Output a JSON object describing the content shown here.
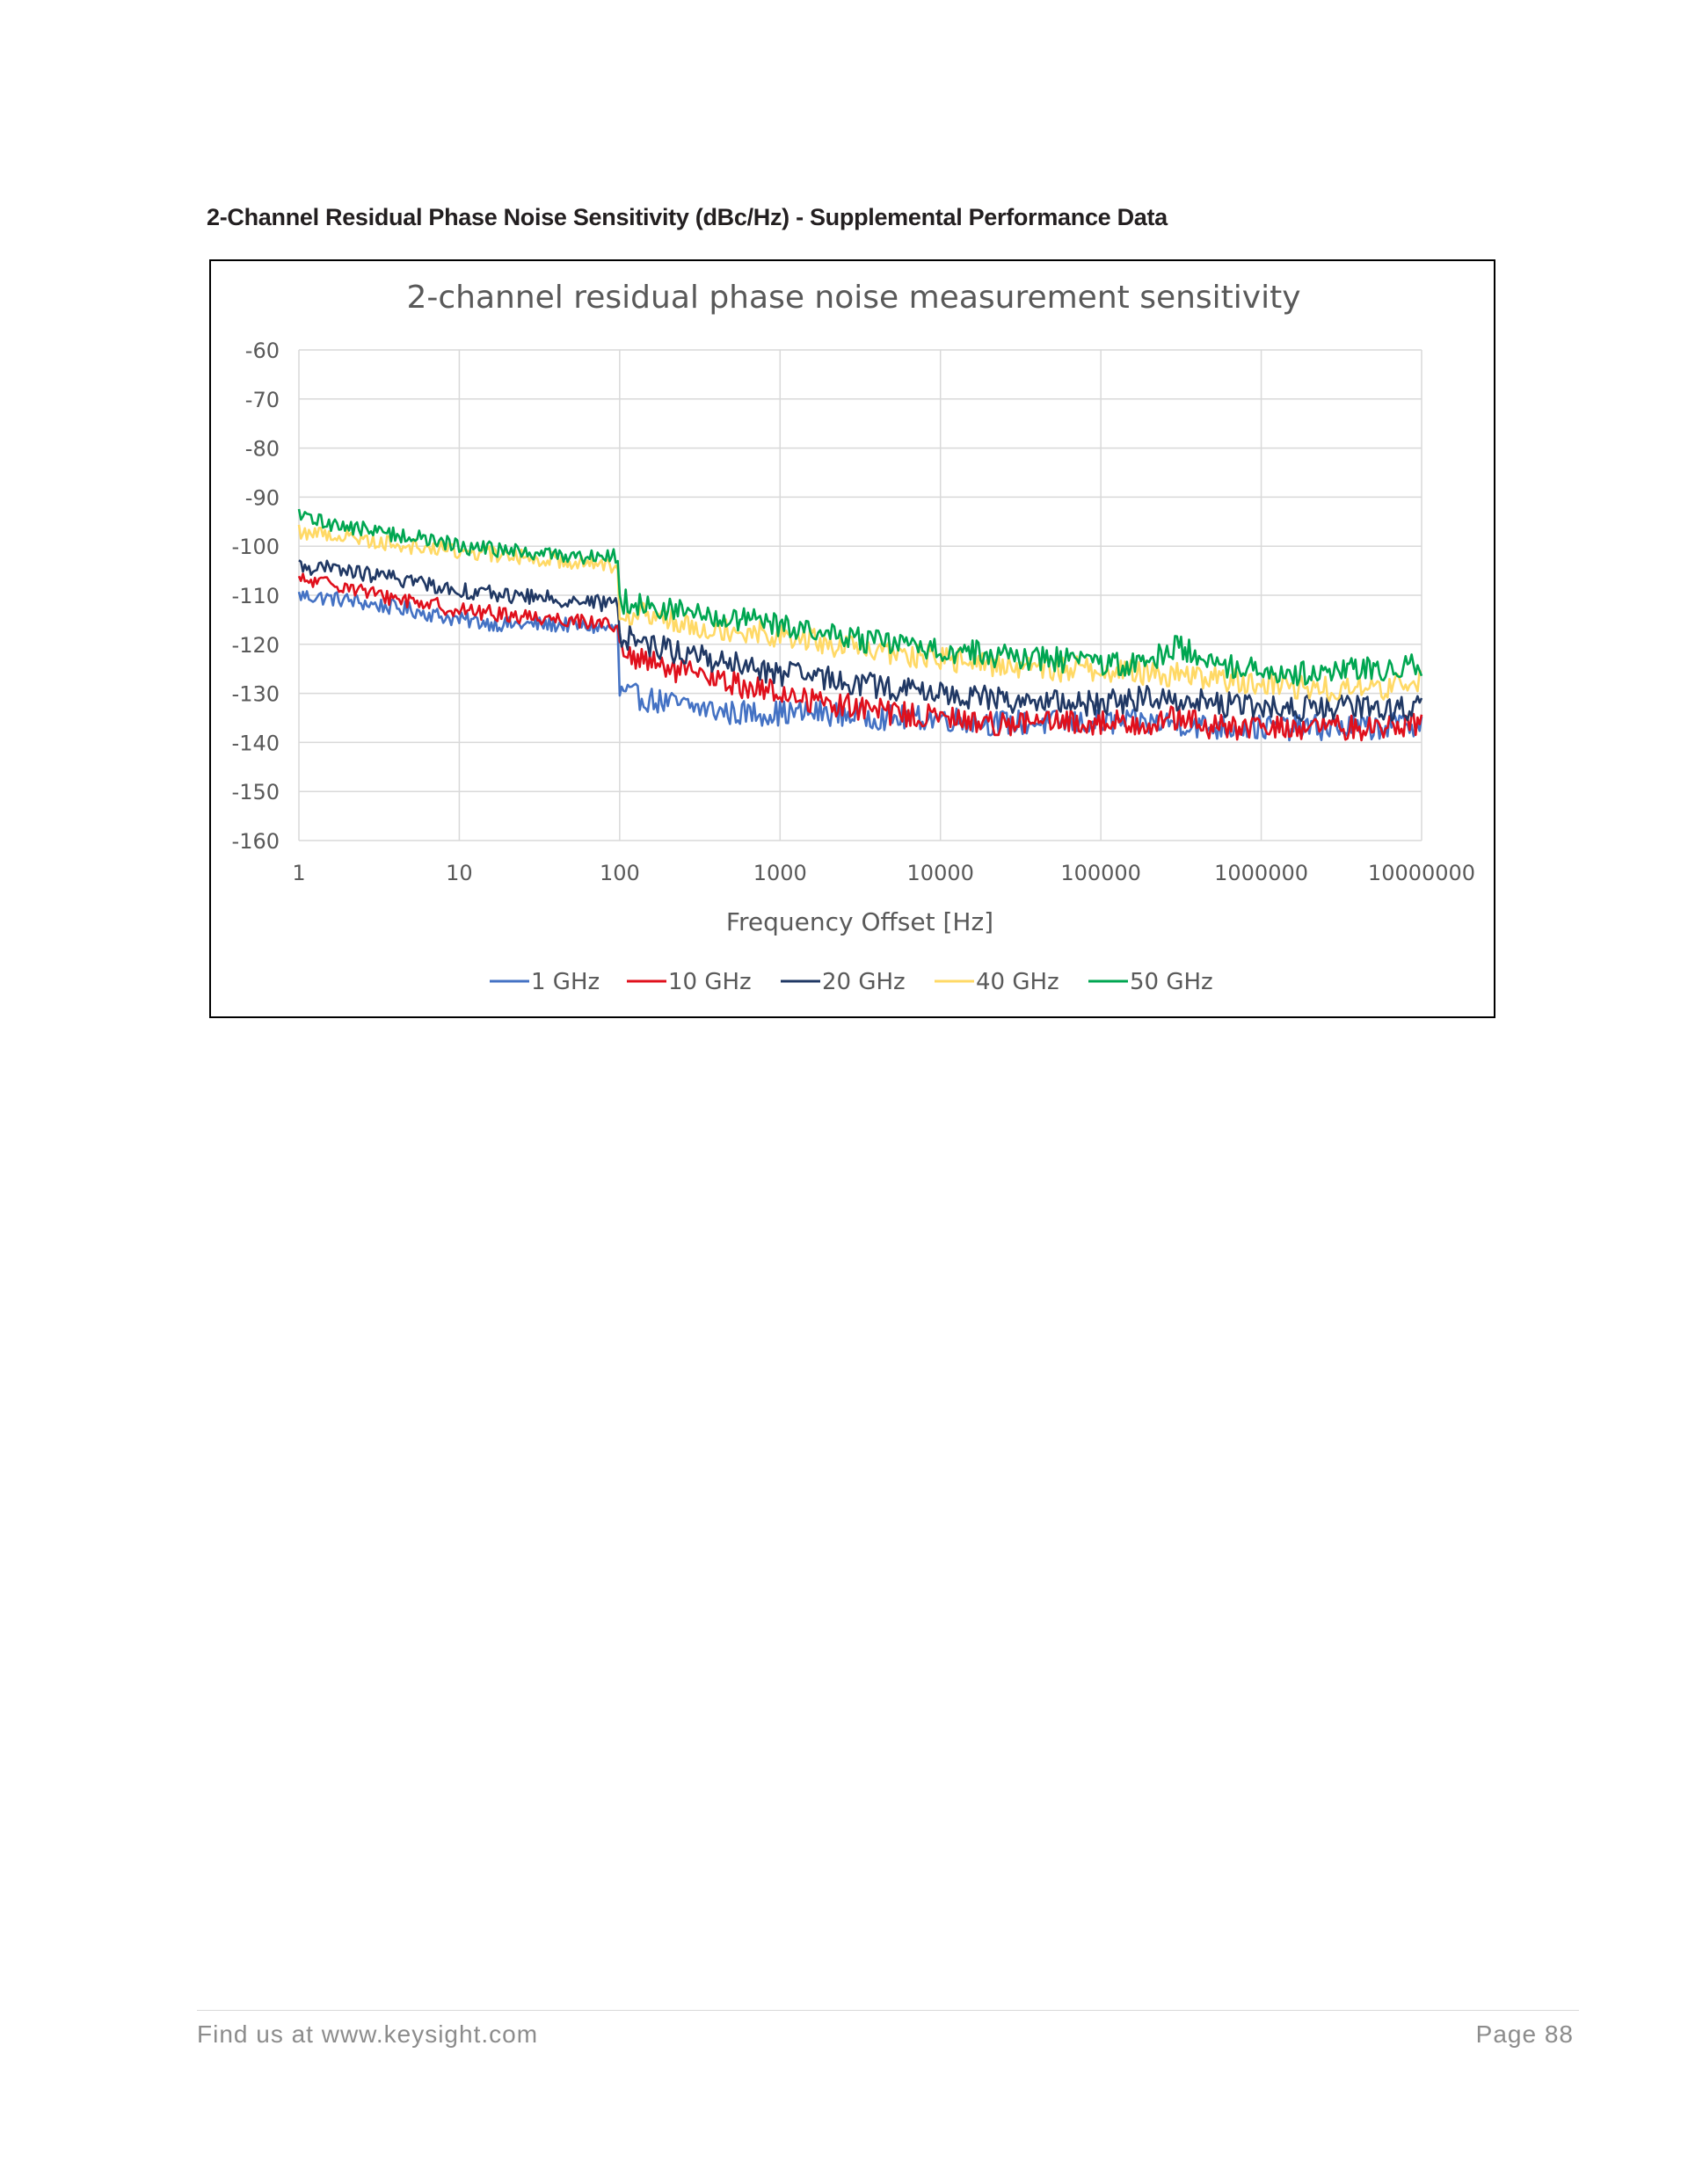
{
  "heading": "2-Channel Residual Phase Noise Sensitivity (dBc/Hz) - Supplemental Performance Data",
  "footer": {
    "left": "Find us at www.keysight.com",
    "right": "Page 88"
  },
  "chart_data": {
    "type": "line",
    "title": "2-channel residual phase noise measurement sensitivity",
    "xlabel": "Frequency Offset [Hz]",
    "ylabel": "",
    "xscale": "log",
    "xlim": [
      1,
      10000000
    ],
    "ylim": [
      -160,
      -60
    ],
    "x_ticks": [
      "1",
      "10",
      "100",
      "1000",
      "10000",
      "100000",
      "1000000",
      "10000000"
    ],
    "x_tick_values": [
      1,
      10,
      100,
      1000,
      10000,
      100000,
      1000000,
      10000000
    ],
    "y_ticks": [
      -60,
      -70,
      -80,
      -90,
      -100,
      -110,
      -120,
      -130,
      -140,
      -150,
      -160
    ],
    "grid": true,
    "legend_position": "bottom",
    "x": [
      1,
      2,
      3,
      5,
      10,
      20,
      50,
      99,
      100,
      200,
      500,
      1000,
      2000,
      5000,
      10000,
      20000,
      50000,
      100000,
      200000,
      300000,
      500000,
      1000000,
      2000000,
      5000000,
      10000000
    ],
    "series": [
      {
        "name": "1 GHz",
        "color": "#4472c4",
        "values": [
          -110,
          -111,
          -112,
          -113,
          -115,
          -116,
          -116,
          -117,
          -130,
          -132,
          -134,
          -134,
          -134,
          -135,
          -135,
          -136,
          -136,
          -136,
          -136,
          -136,
          -137,
          -137,
          -137,
          -137,
          -136
        ]
      },
      {
        "name": "10 GHz",
        "color": "#e0101c",
        "values": [
          -107,
          -108,
          -110,
          -111,
          -113,
          -114,
          -115,
          -116,
          -122,
          -125,
          -128,
          -130,
          -132,
          -134,
          -135,
          -136,
          -136,
          -136,
          -136,
          -135,
          -137,
          -137,
          -137,
          -137,
          -136
        ]
      },
      {
        "name": "20 GHz",
        "color": "#203864",
        "values": [
          -104,
          -105,
          -106,
          -107,
          -109,
          -110,
          -111,
          -112,
          -118,
          -121,
          -124,
          -126,
          -127,
          -129,
          -130,
          -131,
          -132,
          -132,
          -131,
          -131,
          -132,
          -133,
          -133,
          -133,
          -133
        ]
      },
      {
        "name": "40 GHz",
        "color": "#ffd966",
        "values": [
          -97,
          -98,
          -99,
          -100,
          -101,
          -102,
          -103,
          -104,
          -113,
          -115,
          -117,
          -118,
          -120,
          -122,
          -123,
          -124,
          -125,
          -125,
          -126,
          -126,
          -127,
          -128,
          -129,
          -129,
          -128
        ]
      },
      {
        "name": "50 GHz",
        "color": "#00a651",
        "values": [
          -94,
          -96,
          -97,
          -98,
          -100,
          -101,
          -102,
          -102,
          -111,
          -113,
          -115,
          -116,
          -118,
          -120,
          -121,
          -122,
          -123,
          -124,
          -124,
          -120,
          -124,
          -125,
          -126,
          -125,
          -124
        ]
      }
    ]
  }
}
